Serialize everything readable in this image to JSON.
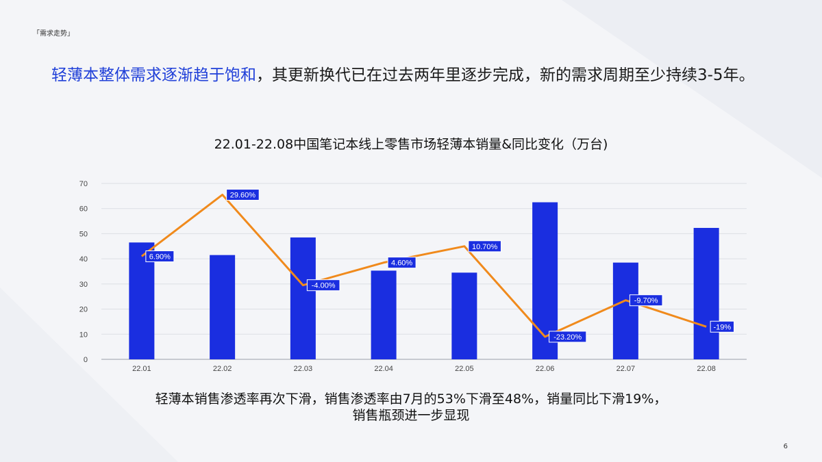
{
  "header": {
    "section_tag": "「需求走势」"
  },
  "headline": {
    "highlight": "轻薄本整体需求逐渐趋于饱和",
    "rest": "，其更新换代已在过去两年里逐步完成，新的需求周期至少持续3-5年。"
  },
  "chart_data": {
    "type": "bar",
    "title": "22.01-22.08中国笔记本线上零售市场轻薄本销量&同比变化（万台)",
    "categories": [
      "22.01",
      "22.02",
      "22.03",
      "22.04",
      "22.05",
      "22.06",
      "22.07",
      "22.08"
    ],
    "series": [
      {
        "values": [
          46.5,
          41.5,
          48.5,
          35.3,
          34.5,
          62.5,
          38.5,
          52.3
        ],
        "color": "#1a2ee0"
      },
      {
        "type": "line",
        "values": [
          41.0,
          65.5,
          29.5,
          38.5,
          45.0,
          9.0,
          23.5,
          13.0
        ],
        "labels": [
          "6.90%",
          "29.60%",
          "-4.00%",
          "4.60%",
          "10.70%",
          "-23.20%",
          "-9.70%",
          "-19%"
        ],
        "color": "#f08a1c"
      }
    ],
    "ylim": [
      0,
      70
    ],
    "yticks": [
      0,
      10,
      20,
      30,
      40,
      50,
      60,
      70
    ],
    "grid": true,
    "label_bg": "#1a2ee0"
  },
  "footer": {
    "caption_line1": "轻薄本销售渗透率再次下滑，销售渗透率由7月的53%下滑至48%，销量同比下滑19%，",
    "caption_line2": "销售瓶颈进一步显现",
    "page_number": "6"
  }
}
